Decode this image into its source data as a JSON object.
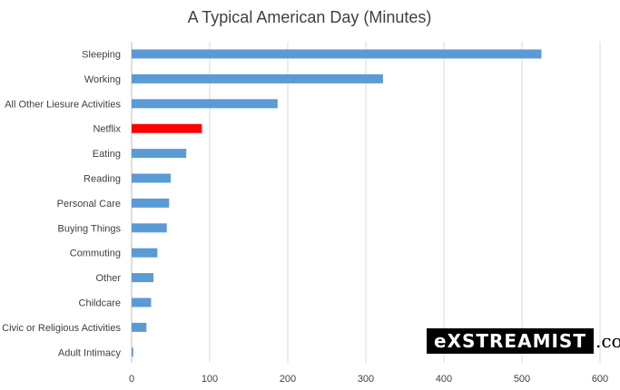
{
  "chart_data": {
    "type": "bar",
    "orientation": "horizontal",
    "title": "A Typical American Day (Minutes)",
    "categories": [
      "Sleeping",
      "Working",
      "All Other Liesure Activities",
      "Netflix",
      "Eating",
      "Reading",
      "Personal Care",
      "Buying Things",
      "Commuting",
      "Other",
      "Childcare",
      "Civic or Religious Activities",
      "Adult Intimacy"
    ],
    "values": [
      525,
      322,
      187,
      90,
      70,
      50,
      48,
      45,
      33,
      28,
      25,
      19,
      2
    ],
    "highlight": "Netflix",
    "colors": {
      "bar": "#5b9bd5",
      "highlight": "#ff0000",
      "grid": "#d9d9d9"
    },
    "xlim": [
      0,
      600
    ],
    "xticks": [
      0,
      100,
      200,
      300,
      400,
      500,
      600
    ],
    "grid": true,
    "legend": "none"
  },
  "watermark": {
    "brand": "eXSTREAMIST",
    "suffix": ".com"
  }
}
